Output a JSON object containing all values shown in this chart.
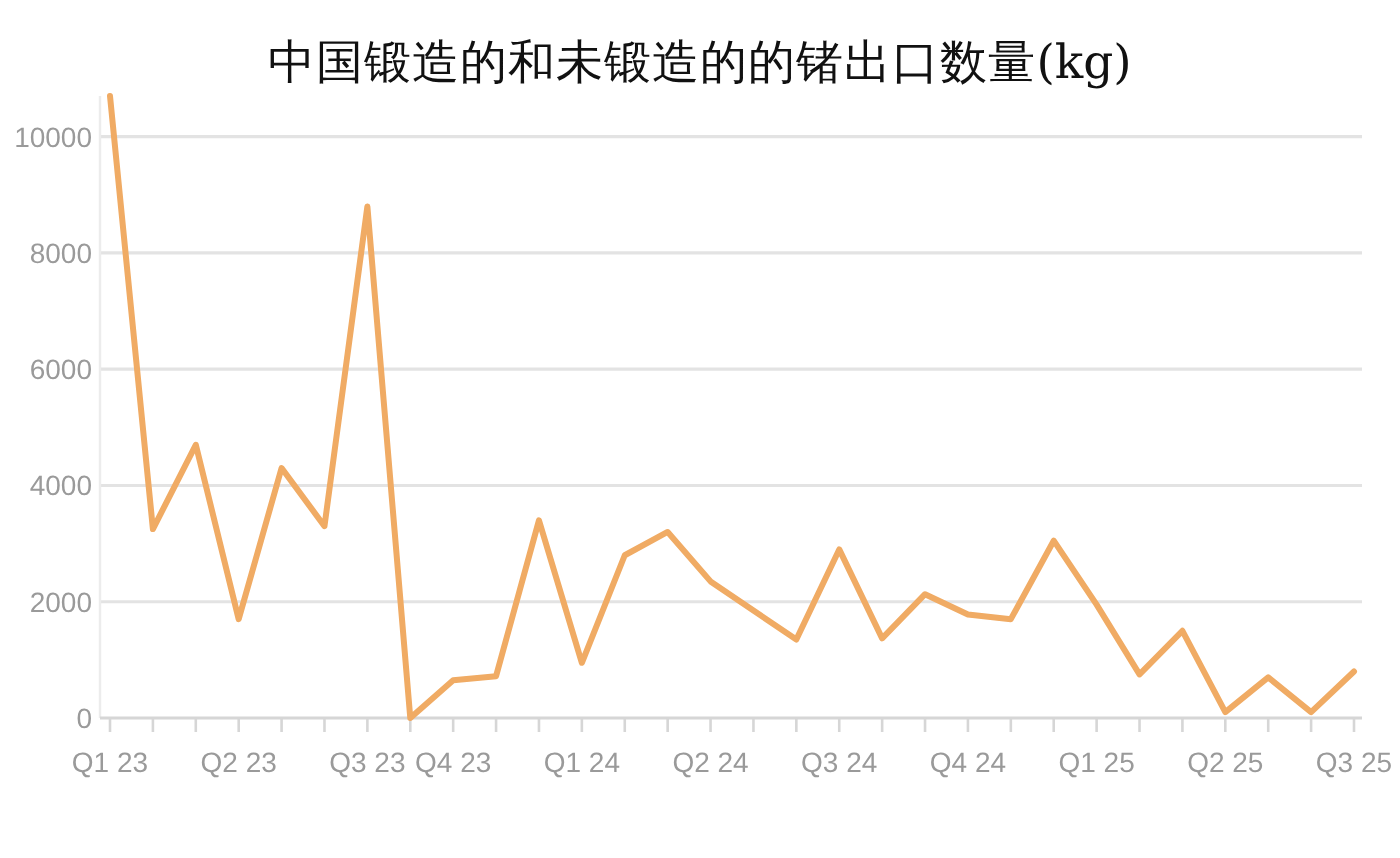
{
  "chart_data": {
    "type": "line",
    "title": "中国锻造的和未锻造的的锗出口数量(kg)",
    "categories": [
      "Q1 23",
      null,
      null,
      "Q2 23",
      null,
      null,
      "Q3 23",
      null,
      "Q4 23",
      null,
      null,
      "Q1 24",
      null,
      null,
      "Q2 24",
      null,
      null,
      "Q3 24",
      null,
      null,
      "Q4 24",
      null,
      null,
      "Q1 25",
      null,
      null,
      "Q2 25",
      null,
      null,
      "Q3 25"
    ],
    "series": [
      {
        "color": "#f0ab64",
        "values": [
          10700,
          3250,
          4700,
          1700,
          4300,
          3300,
          8800,
          0,
          650,
          720,
          3400,
          950,
          2800,
          3200,
          2350,
          1850,
          1350,
          2900,
          1370,
          2130,
          1780,
          1700,
          3050,
          1950,
          750,
          1500,
          100,
          700,
          100,
          800
        ]
      }
    ],
    "ylim": [
      0,
      10700
    ],
    "yticks": [
      0,
      2000,
      4000,
      6000,
      8000,
      10000
    ],
    "grid": "y",
    "line_style": "solid"
  }
}
